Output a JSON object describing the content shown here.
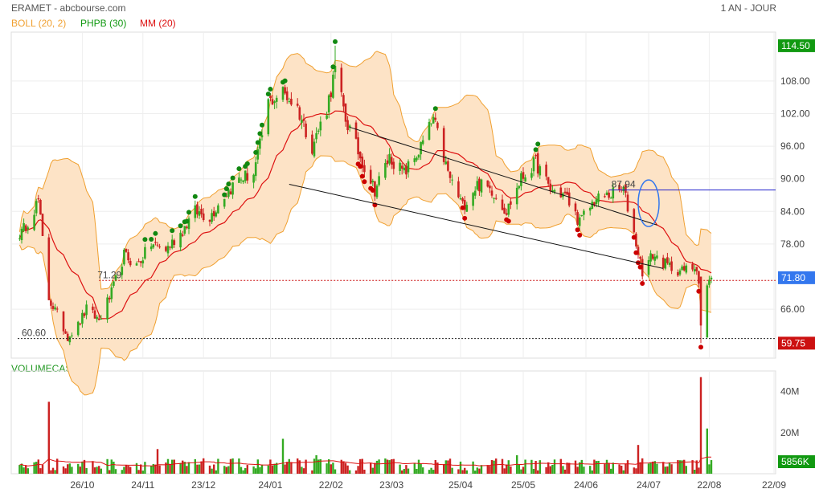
{
  "header": {
    "title": "ERAMET - abcbourse.com",
    "period": "1 AN - JOUR"
  },
  "legend": [
    {
      "label": "BOLL (20, 2)",
      "color": "#f0a030"
    },
    {
      "label": "PHPB (30)",
      "color": "#119911"
    },
    {
      "label": "MM (20)",
      "color": "#dd1111"
    }
  ],
  "volume_panel": {
    "title": "VOLUMECASH"
  },
  "colors": {
    "up": "#33aa22",
    "down": "#cc2222",
    "boll_fill": "#fde3c6",
    "boll_line": "#f0a030",
    "mm": "#dd1111",
    "last_tag": "#3377ee",
    "high_tag": "#119911",
    "low_tag": "#cc1111",
    "vol_tag": "#119911"
  },
  "chart_data": {
    "type": "candlestick",
    "price_axis": {
      "ticks": [
        "108.00",
        "102.00",
        "96.00",
        "90.00",
        "84.00",
        "78.00",
        "66.00"
      ],
      "ylim": [
        57,
        117
      ]
    },
    "price_tags": {
      "high": "114.50",
      "last": "71.80",
      "low": "59.75"
    },
    "volume_axis": {
      "ticks": [
        "40M",
        "20M"
      ],
      "last": "5856K"
    },
    "x_labels": [
      "26/10",
      "24/11",
      "23/12",
      "24/01",
      "22/02",
      "23/03",
      "25/04",
      "25/05",
      "24/06",
      "24/07",
      "22/08",
      "22/09"
    ],
    "annotations": [
      {
        "text": "71.29",
        "color": "#cc1111",
        "value": 71.29
      },
      {
        "text": "60.60",
        "color": "#118811",
        "value": 60.6
      },
      {
        "text": "87.94",
        "color": "#2222cc",
        "value": 87.94
      }
    ],
    "trendlines": [
      {
        "from": [
          "2023-03-03",
          99.5
        ],
        "to": [
          "2023-07-28",
          81.5
        ]
      },
      {
        "from": [
          "2023-02-02",
          89.0
        ],
        "to": [
          "2023-07-31",
          73.5
        ]
      }
    ],
    "anchors": [
      [
        "2022-09-27",
        80
      ],
      [
        "2022-10-05",
        86
      ],
      [
        "2022-10-10",
        68
      ],
      [
        "2022-10-14",
        65
      ],
      [
        "2022-10-19",
        61
      ],
      [
        "2022-10-24",
        63
      ],
      [
        "2022-10-28",
        66
      ],
      [
        "2022-11-03",
        64
      ],
      [
        "2022-11-09",
        69
      ],
      [
        "2022-11-15",
        76
      ],
      [
        "2022-11-21",
        74
      ],
      [
        "2022-11-28",
        78
      ],
      [
        "2022-12-05",
        77
      ],
      [
        "2022-12-12",
        80
      ],
      [
        "2022-12-19",
        84
      ],
      [
        "2022-12-26",
        83
      ],
      [
        "2023-01-02",
        87
      ],
      [
        "2023-01-09",
        90
      ],
      [
        "2023-01-16",
        91
      ],
      [
        "2023-01-19",
        96
      ],
      [
        "2023-01-23",
        104
      ],
      [
        "2023-01-30",
        106
      ],
      [
        "2023-02-06",
        103
      ],
      [
        "2023-02-13",
        96
      ],
      [
        "2023-02-20",
        103
      ],
      [
        "2023-02-24",
        110
      ],
      [
        "2023-03-01",
        101
      ],
      [
        "2023-03-08",
        94
      ],
      [
        "2023-03-15",
        88
      ],
      [
        "2023-03-22",
        94
      ],
      [
        "2023-03-29",
        91
      ],
      [
        "2023-04-05",
        95
      ],
      [
        "2023-04-12",
        101
      ],
      [
        "2023-04-19",
        91
      ],
      [
        "2023-04-26",
        85
      ],
      [
        "2023-05-03",
        89
      ],
      [
        "2023-05-10",
        88
      ],
      [
        "2023-05-17",
        84
      ],
      [
        "2023-05-24",
        90
      ],
      [
        "2023-05-31",
        93
      ],
      [
        "2023-06-07",
        88
      ],
      [
        "2023-06-14",
        87
      ],
      [
        "2023-06-21",
        82
      ],
      [
        "2023-06-28",
        86
      ],
      [
        "2023-07-05",
        87
      ],
      [
        "2023-07-12",
        88
      ],
      [
        "2023-07-17",
        80
      ],
      [
        "2023-07-21",
        73
      ],
      [
        "2023-07-26",
        76
      ],
      [
        "2023-08-02",
        74
      ],
      [
        "2023-08-09",
        73
      ],
      [
        "2023-08-16",
        74
      ],
      [
        "2023-08-17",
        71
      ],
      [
        "2023-08-18",
        61
      ],
      [
        "2023-08-21",
        70
      ],
      [
        "2023-08-23",
        71.8
      ]
    ],
    "volume_spikes": [
      [
        "2022-10-10",
        35
      ],
      [
        "2022-12-01",
        12
      ],
      [
        "2023-01-30",
        17
      ],
      [
        "2023-02-15",
        9
      ],
      [
        "2023-05-22",
        9
      ],
      [
        "2023-07-19",
        14
      ],
      [
        "2023-08-18",
        47
      ],
      [
        "2023-08-21",
        22
      ]
    ]
  }
}
